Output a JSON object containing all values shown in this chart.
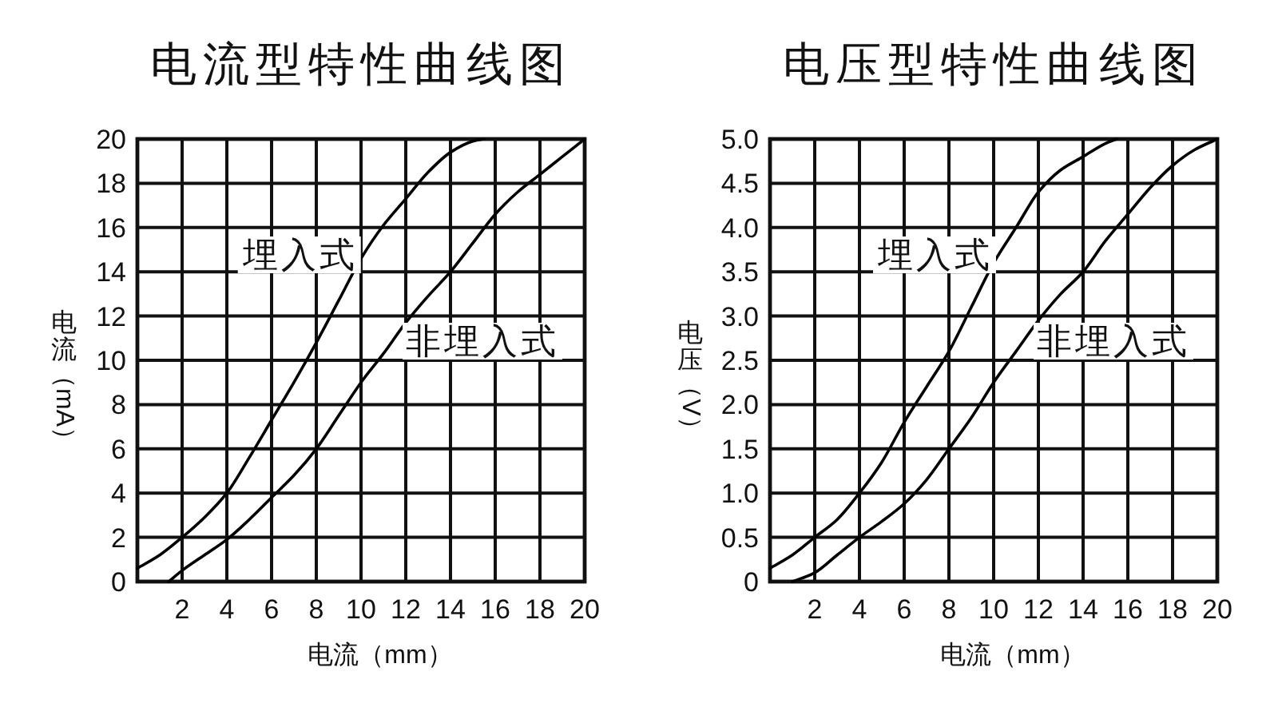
{
  "chart_data": [
    {
      "type": "line",
      "title": "电流型特性曲线图",
      "xlabel": "电流（mm）",
      "ylabel": "电流（mA）",
      "xlim": [
        0,
        20
      ],
      "ylim": [
        0,
        20
      ],
      "xticks": [
        2,
        4,
        6,
        8,
        10,
        12,
        14,
        16,
        18,
        20
      ],
      "yticks": [
        0,
        2,
        4,
        6,
        8,
        10,
        12,
        14,
        16,
        18,
        20
      ],
      "grid": true,
      "series": [
        {
          "name": "埋入式",
          "color": "#000000",
          "x": [
            0,
            1,
            2,
            3,
            4,
            5,
            6,
            7,
            8,
            9,
            10,
            11,
            12,
            13,
            14,
            15,
            15.5
          ],
          "values": [
            0.6,
            1.2,
            2.0,
            2.9,
            4.0,
            5.6,
            7.3,
            9.0,
            10.8,
            12.7,
            14.6,
            16.1,
            17.3,
            18.5,
            19.4,
            19.9,
            20
          ]
        },
        {
          "name": "非埋入式",
          "color": "#000000",
          "x": [
            1.4,
            2,
            3,
            4,
            5,
            6,
            7,
            8,
            9,
            10,
            11,
            12,
            13,
            14,
            15,
            16,
            17,
            18,
            19,
            20
          ],
          "values": [
            0,
            0.5,
            1.2,
            1.9,
            2.8,
            3.8,
            4.8,
            6.0,
            7.5,
            9.0,
            10.3,
            11.7,
            12.9,
            14.0,
            15.3,
            16.6,
            17.6,
            18.4,
            19.2,
            20
          ]
        }
      ]
    },
    {
      "type": "line",
      "title": "电压型特性曲线图",
      "xlabel": "电流（mm）",
      "ylabel": "电压（V）",
      "xlim": [
        0,
        20
      ],
      "ylim": [
        0,
        5
      ],
      "xticks": [
        2,
        4,
        6,
        8,
        10,
        12,
        14,
        16,
        18,
        20
      ],
      "yticks": [
        0,
        0.5,
        {
          "value": 1,
          "label": "1.0"
        },
        1.5,
        {
          "value": 2,
          "label": "2.0"
        },
        2.5,
        {
          "value": 3,
          "label": "3.0"
        },
        3.5,
        {
          "value": 4,
          "label": "4.0"
        },
        4.5,
        {
          "value": 5,
          "label": "5.0"
        }
      ],
      "grid": true,
      "series": [
        {
          "name": "埋入式",
          "color": "#000000",
          "x": [
            0,
            1,
            2,
            3,
            4,
            5,
            6,
            7,
            8,
            9,
            10,
            11,
            12,
            13,
            14,
            15,
            15.5
          ],
          "values": [
            0.15,
            0.3,
            0.5,
            0.7,
            1.0,
            1.35,
            1.8,
            2.2,
            2.6,
            3.1,
            3.6,
            4.0,
            4.4,
            4.65,
            4.8,
            4.95,
            5.0
          ]
        },
        {
          "name": "非埋入式",
          "color": "#000000",
          "x": [
            1,
            2,
            3,
            4,
            5,
            6,
            7,
            8,
            9,
            10,
            11,
            12,
            13,
            14,
            15,
            16,
            17,
            18,
            19,
            20
          ],
          "values": [
            0,
            0.1,
            0.3,
            0.5,
            0.68,
            0.88,
            1.15,
            1.5,
            1.85,
            2.25,
            2.6,
            2.95,
            3.25,
            3.5,
            3.85,
            4.15,
            4.45,
            4.7,
            4.88,
            5.0
          ]
        }
      ]
    }
  ]
}
